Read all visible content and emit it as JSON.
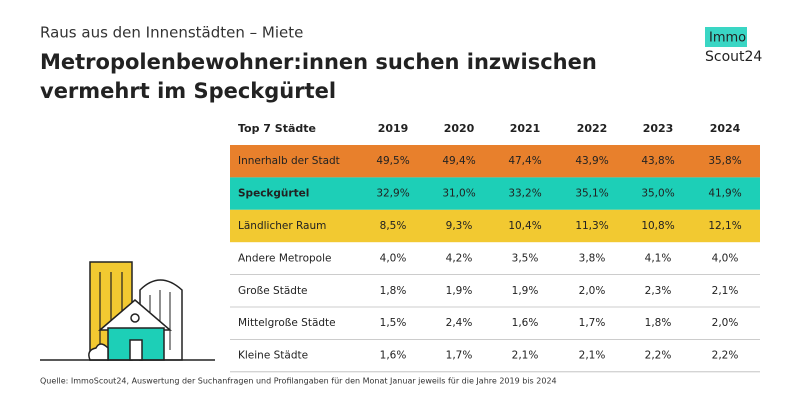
{
  "header": {
    "kicker": "Raus aus den Innenstädten – Miete",
    "title_lines": [
      "Metropolenbewohner:innen suchen inzwischen",
      "vermehrt im Speckgürtel"
    ]
  },
  "logo": {
    "top": "Immo",
    "bottom": "Scout24"
  },
  "table": {
    "columns": [
      "Top 7 Städte",
      "2019",
      "2020",
      "2021",
      "2022",
      "2023",
      "2024"
    ],
    "rows": [
      [
        "Innerhalb der Stadt",
        "49,5%",
        "49,4%",
        "47,4%",
        "43,9%",
        "43,8%",
        "35,8%"
      ],
      [
        "Speckgürtel",
        "32,9%",
        "31,0%",
        "33,2%",
        "35,1%",
        "35,0%",
        "41,9%"
      ],
      [
        "Ländlicher Raum",
        "8,5%",
        "9,3%",
        "10,4%",
        "11,3%",
        "10,8%",
        "12,1%"
      ],
      [
        "Andere Metropole",
        "4,0%",
        "4,2%",
        "3,5%",
        "3,8%",
        "4,1%",
        "4,0%"
      ],
      [
        "Große Städte",
        "1,8%",
        "1,9%",
        "1,9%",
        "2,0%",
        "2,3%",
        "2,1%"
      ],
      [
        "Mittelgroße Städte",
        "1,5%",
        "2,4%",
        "1,6%",
        "1,7%",
        "1,8%",
        "2,0%"
      ],
      [
        "Kleine Städte",
        "1,6%",
        "1,7%",
        "2,1%",
        "2,1%",
        "2,2%",
        "2,2%"
      ]
    ]
  },
  "source": "Quelle: ImmoScout24, Auswertung der Suchanfragen und Profilangaben für den Monat Januar jeweils für die Jahre 2019 bis 2024"
}
